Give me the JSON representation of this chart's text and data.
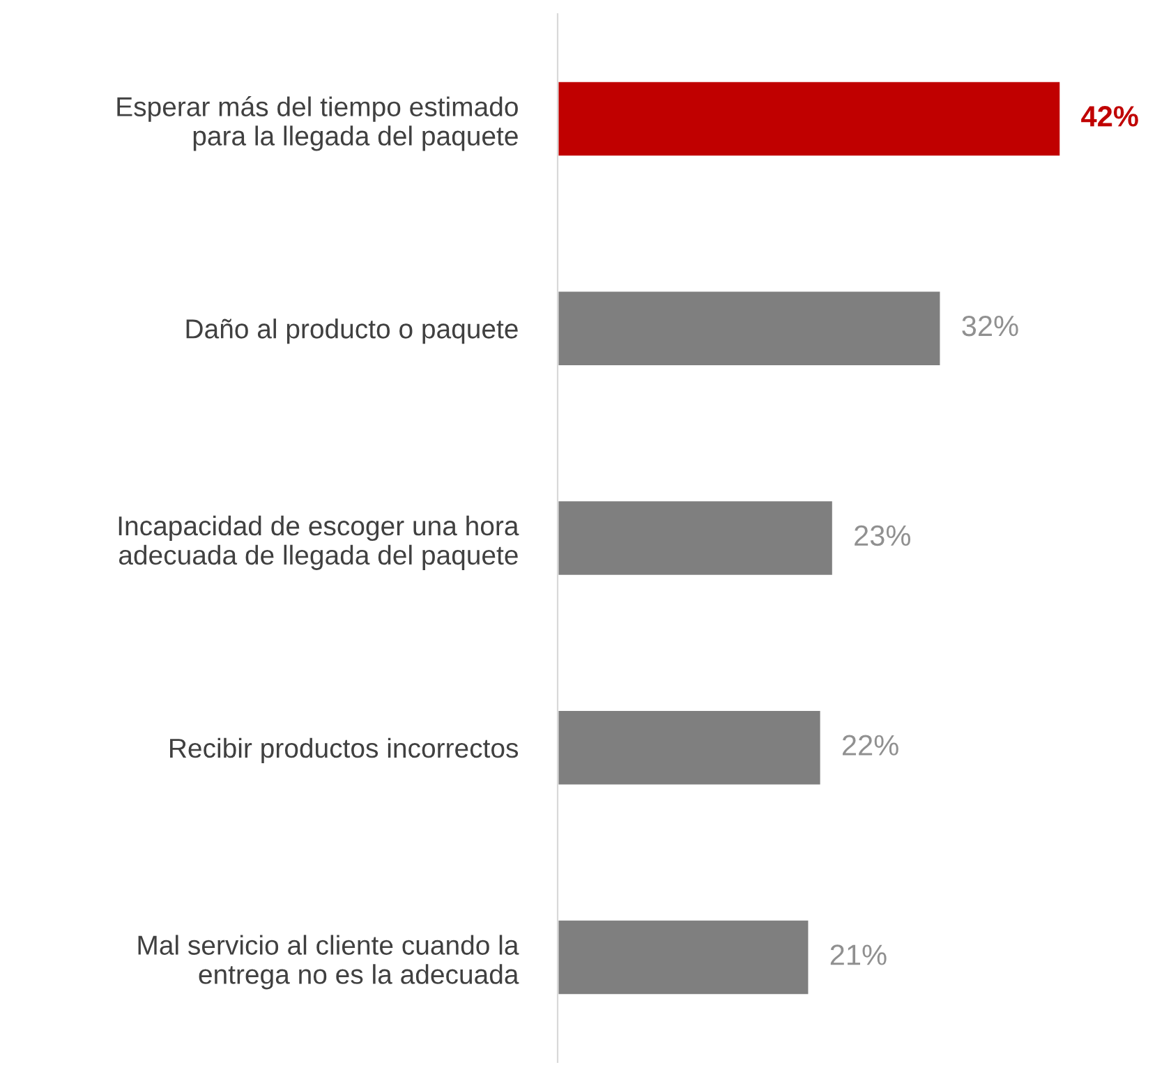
{
  "chart_data": {
    "type": "bar",
    "orientation": "horizontal",
    "categories": [
      "Esperar más del tiempo estimado\npara la llegada del paquete",
      "Daño al producto o paquete",
      "Incapacidad de escoger una hora\nadecuada de llegada del paquete",
      "Recibir productos incorrectos",
      "Mal servicio al cliente cuando la\nentrega no es la adecuada"
    ],
    "values": [
      42,
      32,
      23,
      22,
      21
    ],
    "value_labels": [
      "42%",
      "32%",
      "23%",
      "22%",
      "21%"
    ],
    "colors": [
      "#c00000",
      "#7f7f7f",
      "#7f7f7f",
      "#7f7f7f",
      "#7f7f7f"
    ],
    "grid": false,
    "legend": false
  }
}
